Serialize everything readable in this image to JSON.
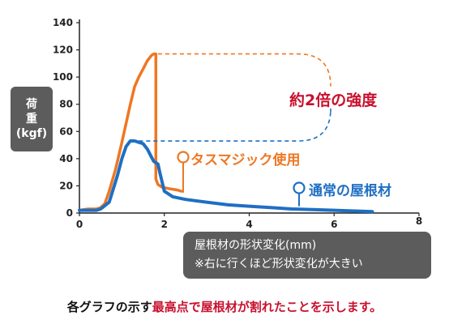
{
  "chart_data": {
    "type": "line",
    "xlim": [
      0,
      8
    ],
    "ylim": [
      0,
      140
    ],
    "x_ticks": [
      "0",
      "2",
      "4",
      "6",
      "8"
    ],
    "y_ticks": [
      "0",
      "20",
      "40",
      "60",
      "80",
      "100",
      "120",
      "140"
    ],
    "ylabel": [
      "荷",
      "重",
      "(kgf)"
    ],
    "xlabel": "屋根材の形状変化(mm)",
    "xlabel_note": "※右に行くほど形状変化が大きい",
    "series": [
      {
        "name": "タスマジック使用",
        "color": "#ee7722",
        "x": [
          0,
          0.2,
          0.4,
          0.5,
          0.6,
          0.7,
          0.85,
          1.0,
          1.1,
          1.2,
          1.3,
          1.4,
          1.5,
          1.6,
          1.7,
          1.75,
          1.8,
          1.8,
          1.85,
          1.95,
          2.1,
          2.3,
          2.4
        ],
        "values": [
          2,
          3,
          3,
          4,
          7,
          16,
          32,
          52,
          66,
          80,
          93,
          100,
          106,
          112,
          116,
          117,
          117,
          25,
          21,
          19,
          18,
          17,
          16
        ]
      },
      {
        "name": "通常の屋根材",
        "color": "#1f6fc3",
        "x": [
          0,
          0.2,
          0.4,
          0.5,
          0.7,
          0.9,
          1.0,
          1.1,
          1.2,
          1.3,
          1.4,
          1.5,
          1.6,
          1.7,
          1.75,
          1.8,
          1.85,
          1.9,
          2.0,
          2.2,
          2.5,
          3.0,
          3.5,
          4.0,
          4.5,
          5.0,
          5.5,
          6.0,
          6.5,
          6.9
        ],
        "values": [
          2,
          2,
          2,
          3,
          8,
          28,
          40,
          49,
          53,
          53,
          52,
          51,
          47,
          41,
          38,
          37,
          36,
          29,
          16,
          12,
          10,
          8,
          6,
          5,
          4,
          3,
          2.5,
          2,
          1.5,
          1
        ]
      }
    ],
    "annotation_strength": "約2倍の強度",
    "annotation_strength_color": "#c8102e"
  },
  "caption": {
    "plain": "各グラフの示す",
    "highlight": "最高点で屋根材が割れたことを示します。"
  }
}
